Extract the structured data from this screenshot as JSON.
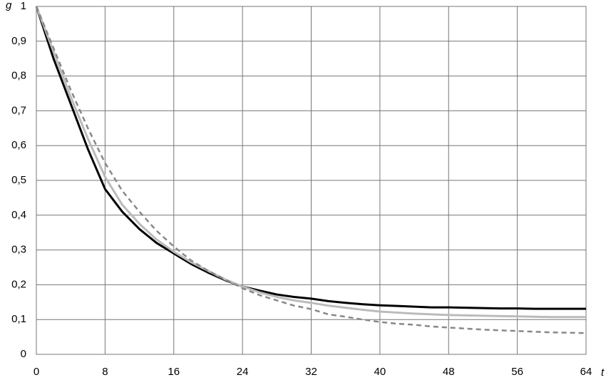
{
  "chart_data": {
    "type": "line",
    "y_label": "g",
    "x_label": "t",
    "x": [
      0,
      2,
      4,
      6,
      8,
      10,
      12,
      14,
      16,
      18,
      20,
      22,
      24,
      26,
      28,
      30,
      32,
      34,
      36,
      38,
      40,
      42,
      44,
      46,
      48,
      50,
      52,
      54,
      56,
      58,
      60,
      62,
      64
    ],
    "series": [
      {
        "color": "#000000",
        "style": "solid",
        "values": [
          1.0,
          0.85,
          0.72,
          0.59,
          0.475,
          0.41,
          0.36,
          0.32,
          0.29,
          0.26,
          0.235,
          0.213,
          0.195,
          0.183,
          0.172,
          0.165,
          0.16,
          0.153,
          0.148,
          0.144,
          0.141,
          0.139,
          0.137,
          0.135,
          0.135,
          0.134,
          0.133,
          0.132,
          0.132,
          0.131,
          0.131,
          0.131,
          0.131
        ]
      },
      {
        "color": "#bbbbbb",
        "style": "solid",
        "values": [
          1.0,
          0.87,
          0.74,
          0.62,
          0.51,
          0.43,
          0.375,
          0.33,
          0.295,
          0.265,
          0.24,
          0.215,
          0.195,
          0.178,
          0.165,
          0.155,
          0.148,
          0.14,
          0.134,
          0.128,
          0.123,
          0.12,
          0.117,
          0.115,
          0.113,
          0.112,
          0.111,
          0.11,
          0.109,
          0.108,
          0.107,
          0.107,
          0.107
        ]
      },
      {
        "color": "#888888",
        "style": "dashed",
        "values": [
          1.0,
          0.88,
          0.76,
          0.65,
          0.55,
          0.47,
          0.41,
          0.355,
          0.31,
          0.27,
          0.24,
          0.215,
          0.19,
          0.17,
          0.155,
          0.14,
          0.13,
          0.115,
          0.108,
          0.1,
          0.093,
          0.088,
          0.085,
          0.08,
          0.077,
          0.074,
          0.071,
          0.069,
          0.067,
          0.065,
          0.063,
          0.062,
          0.061
        ]
      }
    ],
    "xlim": [
      0,
      64
    ],
    "xticks": [
      0,
      8,
      16,
      24,
      32,
      40,
      48,
      56,
      64
    ],
    "ylim": [
      0,
      1
    ],
    "yticks": [
      0,
      {
        "value": 0.1,
        "label": "0,1"
      },
      {
        "value": 0.2,
        "label": "0,2"
      },
      {
        "value": 0.3,
        "label": "0,3"
      },
      {
        "value": 0.4,
        "label": "0,4"
      },
      {
        "value": 0.5,
        "label": "0,5"
      },
      {
        "value": 0.6,
        "label": "0,6"
      },
      {
        "value": 0.7,
        "label": "0,7"
      },
      {
        "value": 0.8,
        "label": "0,8"
      },
      {
        "value": 0.9,
        "label": "0,9"
      },
      1
    ],
    "grid": true
  }
}
